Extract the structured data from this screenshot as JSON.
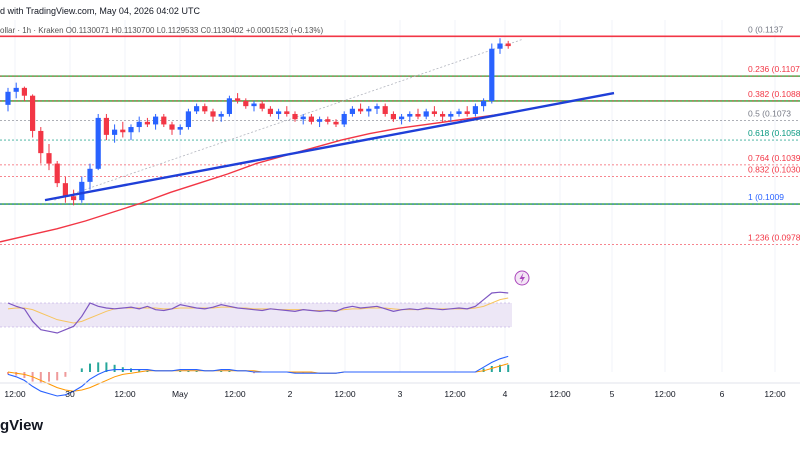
{
  "header": {
    "published": "d with TradingView.com, May 04, 2026 04:02 UTC",
    "symbol_line": "ollar · 1h · Kraken  O0.1130071  H0.1130700  L0.1129533  C0.1130402  +0.0001523 (+0.13%)"
  },
  "brand": {
    "text": "gView"
  },
  "colors": {
    "up": "#2962ff",
    "down": "#f23645",
    "trend": "#1f3fd8",
    "ma": "#f23645",
    "fib_red": "#f23645",
    "fib_green": "#089981",
    "fib_blue": "#2962ff",
    "fib_gray": "#787b86",
    "rsi": "#7e57c2",
    "rsi_ma": "#f7c55f",
    "macd": "#2962ff",
    "signal": "#ff9800",
    "band": "#ede7f6"
  },
  "chart_data": {
    "type": "candlestick",
    "x_tick_labels": [
      "12:00",
      "30",
      "12:00",
      "May",
      "12:00",
      "2",
      "12:00",
      "3",
      "12:00",
      "4",
      "12:00",
      "5",
      "12:00",
      "6",
      "12:00"
    ],
    "fib_levels": [
      {
        "ratio": "0",
        "label": "0 (0.1137",
        "price": 0.11375,
        "color": "gray"
      },
      {
        "ratio": "0.236",
        "label": "0.236 (0.1107",
        "price": 0.1107,
        "color": "red"
      },
      {
        "ratio": "0.382",
        "label": "0.382 (0.1088",
        "price": 0.1088,
        "color": "red"
      },
      {
        "ratio": "0.5",
        "label": "0.5 (0.1073",
        "price": 0.1073,
        "color": "gray"
      },
      {
        "ratio": "0.618",
        "label": "0.618 (0.1058",
        "price": 0.1058,
        "color": "green"
      },
      {
        "ratio": "0.764",
        "label": "0.764 (0.1039",
        "price": 0.1039,
        "color": "red"
      },
      {
        "ratio": "0.832",
        "label": "0.832 (0.1030",
        "price": 0.103,
        "color": "red"
      },
      {
        "ratio": "1",
        "label": "1 (0.1009",
        "price": 0.1009,
        "color": "blue"
      },
      {
        "ratio": "1.236",
        "label": "1.236 (0.0978",
        "price": 0.0978,
        "color": "red"
      }
    ],
    "horizontal_lines": [
      {
        "price": 0.11375,
        "color": "red"
      },
      {
        "price": 0.1107,
        "color": "green"
      },
      {
        "price": 0.1088,
        "color": "green"
      },
      {
        "price": 0.1009,
        "color": "green"
      }
    ],
    "price_range": [
      0.096,
      0.115
    ],
    "candles": [
      [
        0.1085,
        0.1098,
        0.108,
        0.1095
      ],
      [
        0.1095,
        0.1102,
        0.109,
        0.1098
      ],
      [
        0.1098,
        0.1099,
        0.1088,
        0.1092
      ],
      [
        0.1092,
        0.1093,
        0.106,
        0.1065
      ],
      [
        0.1065,
        0.1068,
        0.104,
        0.1048
      ],
      [
        0.1048,
        0.1055,
        0.1035,
        0.104
      ],
      [
        0.104,
        0.1042,
        0.1022,
        0.1025
      ],
      [
        0.1025,
        0.103,
        0.101,
        0.1015
      ],
      [
        0.1015,
        0.102,
        0.1008,
        0.1012
      ],
      [
        0.1012,
        0.103,
        0.101,
        0.1026
      ],
      [
        0.1026,
        0.104,
        0.102,
        0.1036
      ],
      [
        0.1036,
        0.1078,
        0.1035,
        0.1075
      ],
      [
        0.1075,
        0.1078,
        0.1058,
        0.1062
      ],
      [
        0.1062,
        0.107,
        0.1056,
        0.1066
      ],
      [
        0.1066,
        0.1072,
        0.106,
        0.1064
      ],
      [
        0.1064,
        0.107,
        0.1058,
        0.1068
      ],
      [
        0.1068,
        0.1076,
        0.1064,
        0.1072
      ],
      [
        0.1072,
        0.1075,
        0.1068,
        0.107
      ],
      [
        0.107,
        0.1078,
        0.1066,
        0.1076
      ],
      [
        0.1076,
        0.1078,
        0.1068,
        0.107
      ],
      [
        0.107,
        0.1072,
        0.1062,
        0.1066
      ],
      [
        0.1066,
        0.107,
        0.1062,
        0.1068
      ],
      [
        0.1068,
        0.1082,
        0.1066,
        0.108
      ],
      [
        0.108,
        0.1086,
        0.1078,
        0.1084
      ],
      [
        0.1084,
        0.1086,
        0.1078,
        0.108
      ],
      [
        0.108,
        0.1082,
        0.1072,
        0.1076
      ],
      [
        0.1076,
        0.108,
        0.1072,
        0.1078
      ],
      [
        0.1078,
        0.1092,
        0.1076,
        0.109
      ],
      [
        0.109,
        0.1094,
        0.1086,
        0.1088
      ],
      [
        0.1088,
        0.109,
        0.1082,
        0.1084
      ],
      [
        0.1084,
        0.1088,
        0.108,
        0.1086
      ],
      [
        0.1086,
        0.1088,
        0.108,
        0.1082
      ],
      [
        0.1082,
        0.1084,
        0.1076,
        0.1078
      ],
      [
        0.1078,
        0.1082,
        0.1074,
        0.108
      ],
      [
        0.108,
        0.1084,
        0.1076,
        0.1078
      ],
      [
        0.1078,
        0.108,
        0.1072,
        0.1074
      ],
      [
        0.1074,
        0.1078,
        0.107,
        0.1076
      ],
      [
        0.1076,
        0.1078,
        0.107,
        0.1072
      ],
      [
        0.1072,
        0.1076,
        0.1068,
        0.1074
      ],
      [
        0.1074,
        0.1076,
        0.107,
        0.1072
      ],
      [
        0.1072,
        0.1074,
        0.1068,
        0.107
      ],
      [
        0.107,
        0.108,
        0.1068,
        0.1078
      ],
      [
        0.1078,
        0.1084,
        0.1076,
        0.1082
      ],
      [
        0.1082,
        0.1086,
        0.1078,
        0.108
      ],
      [
        0.108,
        0.1084,
        0.1076,
        0.1082
      ],
      [
        0.1082,
        0.1086,
        0.1078,
        0.1084
      ],
      [
        0.1084,
        0.1086,
        0.1076,
        0.1078
      ],
      [
        0.1078,
        0.108,
        0.1072,
        0.1074
      ],
      [
        0.1074,
        0.1078,
        0.107,
        0.1076
      ],
      [
        0.1076,
        0.108,
        0.1072,
        0.1078
      ],
      [
        0.1078,
        0.1082,
        0.1074,
        0.1076
      ],
      [
        0.1076,
        0.1082,
        0.1074,
        0.108
      ],
      [
        0.108,
        0.1084,
        0.1076,
        0.1078
      ],
      [
        0.1078,
        0.108,
        0.1072,
        0.1076
      ],
      [
        0.1076,
        0.108,
        0.1072,
        0.1078
      ],
      [
        0.1078,
        0.1082,
        0.1076,
        0.108
      ],
      [
        0.108,
        0.1084,
        0.1076,
        0.1078
      ],
      [
        0.1078,
        0.1086,
        0.1076,
        0.1084
      ],
      [
        0.1084,
        0.109,
        0.108,
        0.1088
      ],
      [
        0.1088,
        0.1132,
        0.1086,
        0.1128
      ],
      [
        0.1128,
        0.1136,
        0.1124,
        0.1132
      ],
      [
        0.1132,
        0.1134,
        0.1128,
        0.113
      ]
    ],
    "moving_average": [
      0.098,
      0.0985,
      0.099,
      0.0996,
      0.1003,
      0.101,
      0.1018,
      0.1025,
      0.1032,
      0.104,
      0.1046,
      0.1052,
      0.1058,
      0.1063,
      0.1067,
      0.107,
      0.1073,
      0.1076,
      0.1079
    ],
    "trendline": {
      "from": [
        2,
        0.1012
      ],
      "to": [
        61,
        0.1094
      ]
    },
    "projection_line": {
      "from": [
        2,
        0.1012
      ],
      "to": [
        59,
        0.1135
      ]
    },
    "rsi": [
      62,
      58,
      55,
      40,
      30,
      28,
      26,
      30,
      34,
      46,
      62,
      58,
      56,
      55,
      56,
      57,
      55,
      58,
      54,
      53,
      55,
      60,
      58,
      56,
      55,
      57,
      60,
      58,
      56,
      55,
      54,
      53,
      55,
      54,
      53,
      52,
      54,
      53,
      52,
      53,
      52,
      56,
      58,
      56,
      57,
      58,
      55,
      52,
      54,
      55,
      54,
      56,
      55,
      54,
      55,
      56,
      55,
      58,
      66,
      74,
      75,
      74
    ],
    "rsi_ma": [
      55,
      56,
      56,
      54,
      50,
      46,
      42,
      40,
      38,
      40,
      44,
      48,
      52,
      55,
      56,
      56,
      56,
      56,
      56,
      55,
      55,
      56,
      56,
      56,
      56,
      56,
      57,
      57,
      56,
      56,
      55,
      55,
      55,
      54,
      54,
      54,
      54,
      53,
      53,
      53,
      53,
      54,
      55,
      55,
      56,
      56,
      56,
      55,
      54,
      54,
      54,
      55,
      55,
      55,
      55,
      55,
      55,
      56,
      58,
      62,
      66,
      68
    ],
    "macd": [
      -0.0002,
      -0.0004,
      -0.0007,
      -0.0012,
      -0.0016,
      -0.0018,
      -0.002,
      -0.0019,
      -0.0016,
      -0.0012,
      -0.0006,
      -0.0002,
      0.0001,
      0.0002,
      0.0002,
      0.0002,
      0.0002,
      0.0002,
      0.0001,
      0.0001,
      0.0001,
      0.0002,
      0.0002,
      0.0002,
      0.0001,
      0.0001,
      0.0002,
      0.0002,
      0.0001,
      0.0001,
      0.0,
      0.0,
      0.0,
      0.0,
      0.0,
      -0.0001,
      -0.0001,
      -0.0001,
      -0.0001,
      -0.0001,
      -0.0001,
      0.0,
      0.0,
      0.0,
      0.0,
      0.0,
      0.0,
      0.0,
      0.0,
      0.0,
      0.0,
      0.0,
      0.0,
      0.0,
      0.0,
      0.0,
      0.0,
      0.0,
      0.0004,
      0.0008,
      0.0011,
      0.0013
    ],
    "signal": [
      0.0,
      -0.0001,
      -0.0002,
      -0.0004,
      -0.0007,
      -0.001,
      -0.0013,
      -0.0015,
      -0.0016,
      -0.0015,
      -0.0013,
      -0.001,
      -0.0007,
      -0.0004,
      -0.0002,
      -0.0001,
      0.0,
      0.0001,
      0.0001,
      0.0001,
      0.0001,
      0.0001,
      0.0001,
      0.0001,
      0.0001,
      0.0001,
      0.0001,
      0.0001,
      0.0001,
      0.0001,
      0.0001,
      0.0,
      0.0,
      0.0,
      0.0,
      0.0,
      0.0,
      0.0,
      -0.0001,
      -0.0001,
      -0.0001,
      0.0,
      0.0,
      0.0,
      0.0,
      0.0,
      0.0,
      0.0,
      0.0,
      0.0,
      0.0,
      0.0,
      0.0,
      0.0,
      0.0,
      0.0,
      0.0,
      0.0,
      0.0001,
      0.0003,
      0.0005,
      0.0007
    ]
  }
}
